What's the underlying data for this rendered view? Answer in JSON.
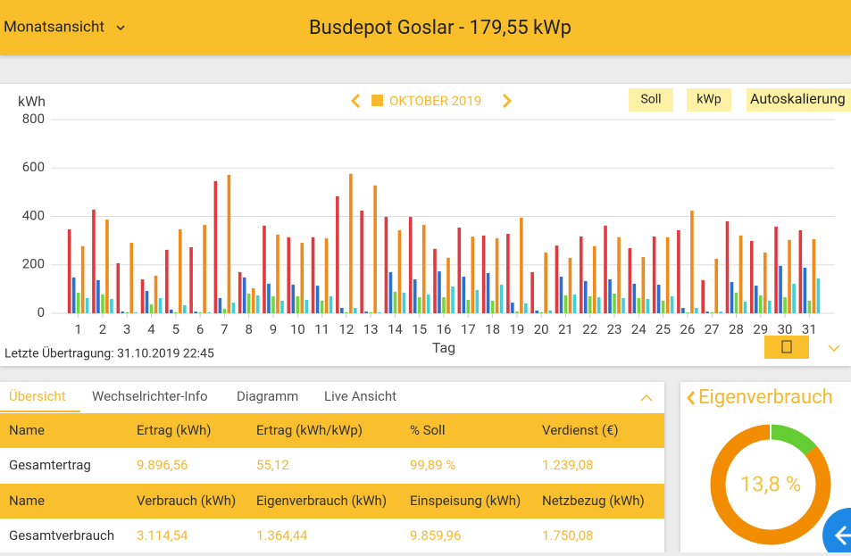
{
  "header": {
    "view": "Monatsansicht",
    "title": "Busdepot Goslar - 179,55 kWp"
  },
  "toolbar": {
    "period": "OKTOBER 2019",
    "buttons": [
      "Soll",
      "kWp",
      "Autoskalierung"
    ]
  },
  "chart_data": {
    "type": "bar",
    "y_label": "kWh",
    "x_label": "Tag",
    "categories": [
      "1",
      "2",
      "3",
      "4",
      "5",
      "6",
      "7",
      "8",
      "9",
      "10",
      "11",
      "12",
      "13",
      "14",
      "15",
      "16",
      "17",
      "18",
      "19",
      "20",
      "21",
      "22",
      "23",
      "24",
      "25",
      "26",
      "27",
      "28",
      "29",
      "30",
      "31"
    ],
    "series": [
      {
        "color": "#e03a3e",
        "values": [
          347,
          428,
          207,
          140,
          262,
          273,
          546,
          170,
          362,
          314,
          314,
          483,
          424,
          398,
          398,
          266,
          354,
          321,
          328,
          170,
          280,
          317,
          362,
          269,
          317,
          343,
          137,
          380,
          299,
          358,
          343
        ]
      },
      {
        "color": "#2a6fd6",
        "values": [
          148,
          137,
          7,
          92,
          15,
          7,
          63,
          148,
          122,
          118,
          114,
          22,
          7,
          170,
          140,
          173,
          151,
          166,
          44,
          11,
          151,
          133,
          140,
          122,
          118,
          22,
          7,
          129,
          114,
          196,
          188
        ]
      },
      {
        "color": "#6fd93c",
        "values": [
          85,
          77,
          4,
          37,
          4,
          4,
          18,
          81,
          70,
          70,
          52,
          4,
          4,
          89,
          66,
          66,
          55,
          52,
          7,
          4,
          74,
          70,
          81,
          63,
          52,
          4,
          4,
          85,
          74,
          66,
          52
        ]
      },
      {
        "color": "#f08a1c",
        "values": [
          277,
          387,
          291,
          155,
          347,
          365,
          572,
          103,
          325,
          291,
          310,
          576,
          528,
          343,
          365,
          229,
          317,
          310,
          395,
          251,
          229,
          277,
          314,
          232,
          314,
          424,
          225,
          321,
          251,
          303,
          306
        ]
      },
      {
        "color": "#3fd0d8",
        "values": [
          63,
          59,
          4,
          63,
          33,
          4,
          44,
          74,
          52,
          55,
          70,
          22,
          4,
          85,
          77,
          111,
          96,
          118,
          41,
          11,
          77,
          66,
          63,
          59,
          70,
          22,
          7,
          48,
          52,
          122,
          144
        ]
      }
    ],
    "ylim": [
      0,
      800
    ],
    "yticks": [
      0,
      200,
      400,
      600,
      800
    ],
    "grid": true
  },
  "status": "Letzte Übertragung: 31.10.2019 22:45",
  "tabs": [
    "Übersicht",
    "Wechselrichter-Info",
    "Diagramm",
    "Live Ansicht"
  ],
  "table": {
    "rows": [
      [
        "Name",
        "Ertrag (kWh)",
        "Ertrag (kWh/kWp)",
        "% Soll",
        "Verdienst (€)"
      ],
      [
        "Gesamtertrag",
        "9.896,56",
        "55,12",
        "99,89 %",
        "1.239,08"
      ],
      [
        "Name",
        "Verbrauch (kWh)",
        "Eigenverbrauch (kWh)",
        "Einspeisung (kWh)",
        "Netzbezug (kWh)"
      ],
      [
        "Gesamtverbrauch",
        "3.114,54",
        "1.364,44",
        "9.859,96",
        "1.750,08"
      ]
    ]
  },
  "eigenverbrauch": {
    "title": "Eigenverbrauch",
    "value": 13.8,
    "value_label": "13,8 %",
    "colors": [
      "#66cc33",
      "#f28c00"
    ]
  }
}
